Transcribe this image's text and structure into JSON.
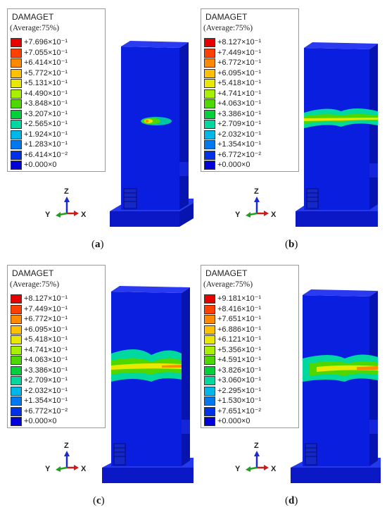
{
  "panels": [
    {
      "id": "a",
      "legend": {
        "title": "DAMAGET",
        "subtitle": "(Average:75%)",
        "values": [
          "+7.696×10⁻¹",
          "+7.055×10⁻¹",
          "+6.414×10⁻¹",
          "+5.772×10⁻¹",
          "+5.131×10⁻¹",
          "+4.490×10⁻¹",
          "+3.848×10⁻¹",
          "+3.207×10⁻¹",
          "+2.565×10⁻¹",
          "+1.924×10⁻¹",
          "+1.283×10⁻¹",
          "+6.414×10⁻²",
          "+0.000×0"
        ]
      },
      "axes": {
        "z": "Z",
        "y": "Y",
        "x": "X"
      },
      "caption_open": "(",
      "caption_letter": "a",
      "caption_close": ")"
    },
    {
      "id": "b",
      "legend": {
        "title": "DAMAGET",
        "subtitle": "(Average:75%)",
        "values": [
          "+8.127×10⁻¹",
          "+7.449×10⁻¹",
          "+6.772×10⁻¹",
          "+6.095×10⁻¹",
          "+5.418×10⁻¹",
          "+4.741×10⁻¹",
          "+4.063×10⁻¹",
          "+3.386×10⁻¹",
          "+2.709×10⁻¹",
          "+2.032×10⁻¹",
          "+1.354×10⁻¹",
          "+6.772×10⁻²",
          "+0.000×0"
        ]
      },
      "axes": {
        "z": "Z",
        "y": "Y",
        "x": "X"
      },
      "caption_open": "(",
      "caption_letter": "b",
      "caption_close": ")"
    },
    {
      "id": "c",
      "legend": {
        "title": "DAMAGET",
        "subtitle": "(Average:75%)",
        "values": [
          "+8.127×10⁻¹",
          "+7.449×10⁻¹",
          "+6.772×10⁻¹",
          "+6.095×10⁻¹",
          "+5.418×10⁻¹",
          "+4.741×10⁻¹",
          "+4.063×10⁻¹",
          "+3.386×10⁻¹",
          "+2.709×10⁻¹",
          "+2.032×10⁻¹",
          "+1.354×10⁻¹",
          "+6.772×10⁻²",
          "+0.000×0"
        ]
      },
      "axes": {
        "z": "Z",
        "y": "Y",
        "x": "X"
      },
      "caption_open": "(",
      "caption_letter": "c",
      "caption_close": ")"
    },
    {
      "id": "d",
      "legend": {
        "title": "DAMAGET",
        "subtitle": "(Average:75%)",
        "values": [
          "+9.181×10⁻¹",
          "+8.416×10⁻¹",
          "+7.651×10⁻¹",
          "+6.886×10⁻¹",
          "+6.121×10⁻¹",
          "+5.356×10⁻¹",
          "+4.591×10⁻¹",
          "+3.826×10⁻¹",
          "+3.060×10⁻¹",
          "+2.295×10⁻¹",
          "+1.530×10⁻¹",
          "+7.651×10⁻²",
          "+0.000×0"
        ]
      },
      "axes": {
        "z": "Z",
        "y": "Y",
        "x": "X"
      },
      "caption_open": "(",
      "caption_letter": "d",
      "caption_close": ")"
    }
  ],
  "colors": {
    "scale": [
      "#e60000",
      "#ff4000",
      "#ff8a00",
      "#ffc000",
      "#e8e800",
      "#a8f000",
      "#4ed800",
      "#00d03a",
      "#00d8a0",
      "#00b8e8",
      "#0078f0",
      "#0030e8",
      "#0000d8"
    ],
    "model_front": "#0a1ee0",
    "model_side": "#0814b0",
    "model_top": "#2a3af0",
    "model_base_top": "#2438ee",
    "model_base_front": "#0b18c6"
  }
}
